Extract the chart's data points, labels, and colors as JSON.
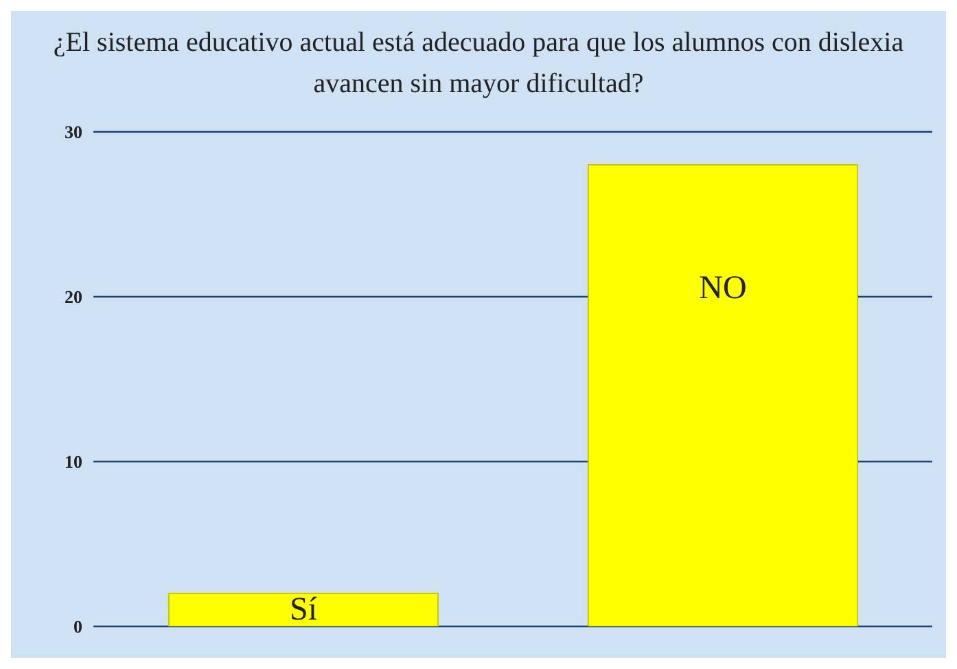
{
  "chart_data": {
    "type": "bar",
    "title": "¿El sistema educativo actual está adecuado para que los alumnos con dislexia avancen sin mayor dificultad?",
    "categories": [
      "Sí",
      "NO"
    ],
    "values": [
      2,
      28
    ],
    "color": "#ffff00",
    "ylim": [
      0,
      30
    ],
    "yticks": [
      0,
      10,
      20,
      30
    ],
    "grid": "y",
    "tick_labels": "y"
  }
}
